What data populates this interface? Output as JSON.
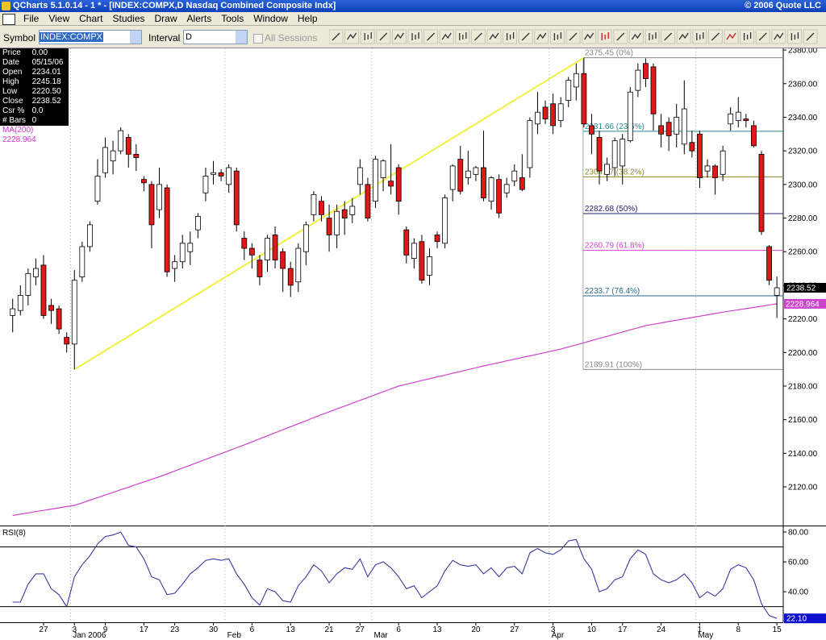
{
  "window": {
    "title": "QCharts 5.1.0.14 - 1 * - [INDEX:COMPX,D Nasdaq Combined Composite Indx]",
    "copyright": "© 2006 Quote LLC"
  },
  "menu": [
    "File",
    "View",
    "Chart",
    "Studies",
    "Draw",
    "Alerts",
    "Tools",
    "Window",
    "Help"
  ],
  "toolbar": {
    "symbol_label": "Symbol",
    "symbol": "INDEX:COMPX",
    "interval_label": "Interval",
    "interval": "D",
    "sessions": "All Sessions"
  },
  "info": {
    "rows": [
      {
        "label": "Price",
        "value": "0.00"
      },
      {
        "label": "Date",
        "value": "05/15/06"
      },
      {
        "label": "Open",
        "value": "2234.01"
      },
      {
        "label": "High",
        "value": "2245.18"
      },
      {
        "label": "Low",
        "value": "2220.50"
      },
      {
        "label": "Close",
        "value": "2238.52"
      },
      {
        "label": "Csr %",
        "value": "0.0"
      },
      {
        "label": "# Bars",
        "value": "0"
      }
    ],
    "ma_value": "2228.964"
  },
  "chart_data": [
    {
      "type": "candlestick",
      "categories": [
        null,
        null,
        null,
        null,
        "27",
        null,
        null,
        null,
        "3",
        null,
        null,
        null,
        "9",
        null,
        null,
        null,
        null,
        "17",
        null,
        null,
        null,
        "23",
        null,
        null,
        null,
        null,
        "30",
        null,
        null,
        null,
        null,
        "6",
        null,
        null,
        null,
        null,
        "13",
        null,
        null,
        null,
        null,
        "21",
        null,
        null,
        null,
        "27",
        null,
        null,
        null,
        null,
        "6",
        null,
        null,
        null,
        null,
        "13",
        null,
        null,
        null,
        null,
        "20",
        null,
        null,
        null,
        null,
        "27",
        null,
        null,
        null,
        null,
        "3",
        null,
        null,
        null,
        null,
        "10",
        null,
        null,
        null,
        "17",
        null,
        null,
        null,
        null,
        "24",
        null,
        null,
        null,
        null,
        "1",
        null,
        null,
        null,
        null,
        "8",
        null,
        null,
        null,
        null,
        "15"
      ],
      "month_labels": [
        null,
        null,
        null,
        null,
        null,
        null,
        null,
        null,
        "Jan 2006",
        null,
        null,
        null,
        null,
        null,
        null,
        null,
        null,
        null,
        null,
        null,
        null,
        null,
        null,
        null,
        null,
        null,
        null,
        null,
        "Feb",
        null,
        null,
        null,
        null,
        null,
        null,
        null,
        null,
        null,
        null,
        null,
        null,
        null,
        null,
        null,
        null,
        null,
        null,
        "Mar",
        null,
        null,
        null,
        null,
        null,
        null,
        null,
        null,
        null,
        null,
        null,
        null,
        null,
        null,
        null,
        null,
        null,
        null,
        null,
        null,
        null,
        null,
        "Apr",
        null,
        null,
        null,
        null,
        null,
        null,
        null,
        null,
        null,
        null,
        null,
        null,
        null,
        null,
        null,
        null,
        null,
        null,
        "May",
        null,
        null,
        null,
        null,
        null,
        null,
        null,
        null,
        null,
        null
      ],
      "open": [
        2222,
        2225,
        2234,
        2245,
        2252,
        2228,
        2226,
        2209,
        2205,
        2245,
        2263,
        2290,
        2307,
        2314,
        2320,
        2328,
        2318,
        2303,
        2300,
        2285,
        2298,
        2250,
        2254,
        2260,
        2273,
        2295,
        2306,
        2307,
        2300,
        2308,
        2268,
        2262,
        2255,
        2255,
        2270,
        2260,
        2250,
        2242,
        2260,
        2282,
        2290,
        2280,
        2270,
        2285,
        2282,
        2300,
        2300,
        2290,
        2304,
        2302,
        2310,
        2273,
        2256,
        2266,
        2246,
        2270,
        2265,
        2297,
        2315,
        2304,
        2306,
        2310,
        2290,
        2303,
        2295,
        2302,
        2304,
        2310,
        2336,
        2346,
        2348,
        2338,
        2350,
        2358,
        2366,
        2335,
        2328,
        2306,
        2310,
        2311,
        2326,
        2356,
        2372,
        2370,
        2335,
        2337,
        2330,
        2324,
        2325,
        2330,
        2308,
        2311,
        2306,
        2336,
        2338,
        2339,
        2335,
        2318,
        2263,
        2234.01
      ],
      "high": [
        2232,
        2240,
        2250,
        2256,
        2258,
        2232,
        2228,
        2212,
        2249,
        2266,
        2278,
        2315,
        2328,
        2326,
        2334,
        2330,
        2324,
        2305,
        2302,
        2310,
        2300,
        2258,
        2270,
        2272,
        2283,
        2310,
        2314,
        2309,
        2312,
        2310,
        2272,
        2265,
        2258,
        2270,
        2275,
        2262,
        2254,
        2265,
        2278,
        2296,
        2293,
        2288,
        2288,
        2290,
        2292,
        2315,
        2304,
        2317,
        2315,
        2324,
        2312,
        2275,
        2268,
        2270,
        2262,
        2272,
        2294,
        2312,
        2323,
        2320,
        2311,
        2332,
        2305,
        2306,
        2304,
        2312,
        2318,
        2340,
        2355,
        2350,
        2354,
        2352,
        2364,
        2372,
        2375.45,
        2342,
        2332,
        2316,
        2328,
        2330,
        2358,
        2372,
        2375,
        2372,
        2342,
        2340,
        2348,
        2362,
        2332,
        2332,
        2315,
        2312,
        2323,
        2346,
        2352,
        2342,
        2338,
        2320,
        2264,
        2245.18
      ],
      "low": [
        2212,
        2222,
        2228,
        2240,
        2220,
        2217,
        2211,
        2200,
        2189.91,
        2242,
        2260,
        2288,
        2304,
        2306,
        2318,
        2310,
        2308,
        2296,
        2262,
        2280,
        2245,
        2242,
        2250,
        2252,
        2268,
        2290,
        2300,
        2302,
        2295,
        2272,
        2255,
        2250,
        2240,
        2248,
        2250,
        2236,
        2233,
        2236,
        2252,
        2278,
        2278,
        2260,
        2262,
        2270,
        2277,
        2294,
        2278,
        2286,
        2296,
        2294,
        2282,
        2253,
        2250,
        2241,
        2240,
        2262,
        2262,
        2290,
        2294,
        2300,
        2302,
        2290,
        2285,
        2280,
        2292,
        2299,
        2296,
        2304,
        2330,
        2336,
        2330,
        2334,
        2346,
        2350,
        2334,
        2318,
        2300,
        2302,
        2305,
        2300,
        2325,
        2352,
        2358,
        2332,
        2322,
        2320,
        2322,
        2318,
        2316,
        2298,
        2304,
        2294,
        2302,
        2332,
        2334,
        2334,
        2322,
        2270,
        2240,
        2220.5
      ],
      "close": [
        2226,
        2234,
        2247,
        2250,
        2222,
        2225,
        2214,
        2205,
        2243,
        2263,
        2276,
        2305,
        2322,
        2320,
        2332,
        2318,
        2316,
        2301,
        2276,
        2300,
        2248,
        2254,
        2265,
        2265,
        2281,
        2305,
        2307,
        2305,
        2310,
        2276,
        2262,
        2258,
        2245,
        2268,
        2255,
        2250,
        2240,
        2262,
        2276,
        2294,
        2282,
        2270,
        2284,
        2280,
        2287,
        2310,
        2280,
        2315,
        2314,
        2299,
        2290,
        2258,
        2265,
        2243,
        2257,
        2266,
        2292,
        2311,
        2296,
        2308,
        2310,
        2292,
        2304,
        2283,
        2300,
        2308,
        2297,
        2338,
        2343,
        2339,
        2335,
        2348,
        2362,
        2366,
        2336,
        2330,
        2308,
        2312,
        2326,
        2327,
        2355,
        2368,
        2363,
        2342,
        2330,
        2329,
        2340,
        2345,
        2320,
        2304,
        2311,
        2304,
        2320,
        2342,
        2343,
        2338,
        2323,
        2272,
        2243,
        2238.52
      ],
      "up_color": "#ffffff",
      "down_color": "#e01818",
      "series": [
        {
          "name": "MA(200)",
          "color": "#cc44cc",
          "values": [
            2103,
            2103.8,
            2104.5,
            2105.3,
            2106,
            2106.8,
            2107.5,
            2108.3,
            2109,
            2110.5,
            2112.1,
            2113.6,
            2115.2,
            2116.7,
            2118.3,
            2119.8,
            2121.4,
            2122.9,
            2124.5,
            2126,
            2127.7,
            2129.5,
            2131.2,
            2132.9,
            2134.6,
            2136.4,
            2138.1,
            2139.8,
            2141.5,
            2143.3,
            2145,
            2146.8,
            2148.6,
            2150.4,
            2152.2,
            2154,
            2155.8,
            2157.6,
            2159.4,
            2161.2,
            2163,
            2164.7,
            2166.4,
            2168.1,
            2169.8,
            2171.5,
            2173.2,
            2174.9,
            2176.6,
            2178.3,
            2180,
            2181.1,
            2182.2,
            2183.3,
            2184.4,
            2185.5,
            2186.5,
            2187.6,
            2188.7,
            2189.8,
            2190.9,
            2192,
            2193,
            2194,
            2195,
            2196,
            2197,
            2198,
            2199,
            2200,
            2201,
            2202,
            2203.3,
            2204.5,
            2205.8,
            2207.1,
            2208.4,
            2209.6,
            2210.9,
            2212.2,
            2213.5,
            2214.7,
            2216,
            2216.8,
            2217.6,
            2218.4,
            2219.2,
            2220,
            2220.8,
            2221.6,
            2222.4,
            2223.2,
            2224,
            2224.7,
            2225.4,
            2226.1,
            2226.8,
            2227.5,
            2228.3,
            2228.964
          ]
        }
      ],
      "fib_levels": [
        {
          "value": 2375.45,
          "label": "2375.45 (0%)",
          "color": "#888888"
        },
        {
          "value": 2331.66,
          "label": "2331.66 (23.6%)",
          "color": "#2a8a8a"
        },
        {
          "value": 2304.57,
          "label": "2304.57 (38.2%)",
          "color": "#8a8a2a"
        },
        {
          "value": 2282.68,
          "label": "2282.68 (50%)",
          "color": "#202070"
        },
        {
          "value": 2260.79,
          "label": "2260.79 (61.8%)",
          "color": "#cc44cc"
        },
        {
          "value": 2233.7,
          "label": "2233.7 (76.4%)",
          "color": "#2a6a8a"
        },
        {
          "value": 2189.91,
          "label": "2189.91 (100%)",
          "color": "#888888"
        }
      ],
      "fib_start": 74,
      "trendline": {
        "color": "#f0f040",
        "from": [
          8,
          2189.91
        ],
        "to": [
          74,
          2375.45
        ]
      },
      "ylim": [
        2097,
        2381
      ],
      "yticks": [
        {
          "value": 2120,
          "label": "2120.00"
        },
        {
          "value": 2140,
          "label": "2140.00"
        },
        {
          "value": 2160,
          "label": "2160.00"
        },
        {
          "value": 2180,
          "label": "2180.00"
        },
        {
          "value": 2200,
          "label": "2200.00"
        },
        {
          "value": 2220,
          "label": "2220.00"
        },
        {
          "value": 2240,
          "label": "2240.00"
        },
        {
          "value": 2260,
          "label": "2260.00"
        },
        {
          "value": 2280,
          "label": "2280.00"
        },
        {
          "value": 2300,
          "label": "2300.00"
        },
        {
          "value": 2320,
          "label": "2320.00"
        },
        {
          "value": 2340,
          "label": "2340.00"
        },
        {
          "value": 2360,
          "label": "2360.00"
        },
        {
          "value": 2380,
          "label": "2380.00"
        }
      ]
    },
    {
      "type": "line",
      "series": [
        {
          "name": "RSI(8)",
          "color": "#3a3aa0",
          "values": [
            33,
            33,
            45,
            52,
            52,
            42,
            38,
            30,
            50,
            58,
            64,
            72,
            77,
            78,
            80,
            71,
            70,
            62,
            50,
            48,
            38,
            39,
            45,
            52,
            56,
            61,
            62,
            61,
            62,
            52,
            45,
            36,
            31,
            42,
            40,
            34,
            33,
            44,
            50,
            58,
            54,
            46,
            52,
            56,
            55,
            62,
            50,
            58,
            60,
            56,
            50,
            42,
            44,
            36,
            40,
            44,
            54,
            61,
            58,
            57,
            58,
            52,
            56,
            50,
            56,
            57,
            52,
            66,
            69,
            66,
            65,
            68,
            74,
            75,
            62,
            55,
            40,
            42,
            48,
            50,
            62,
            68,
            65,
            52,
            48,
            46,
            48,
            52,
            46,
            36,
            40,
            37,
            42,
            55,
            58,
            56,
            48,
            32,
            24,
            22.1
          ]
        }
      ],
      "current": {
        "value": 22.1,
        "label": "22.10"
      },
      "levels": [
        30,
        70
      ],
      "ylim": [
        19.5,
        83.8
      ],
      "yticks": [
        {
          "value": 40,
          "label": "40.00"
        },
        {
          "value": 60,
          "label": "60.00"
        },
        {
          "value": 80,
          "label": "80.00"
        }
      ]
    }
  ]
}
